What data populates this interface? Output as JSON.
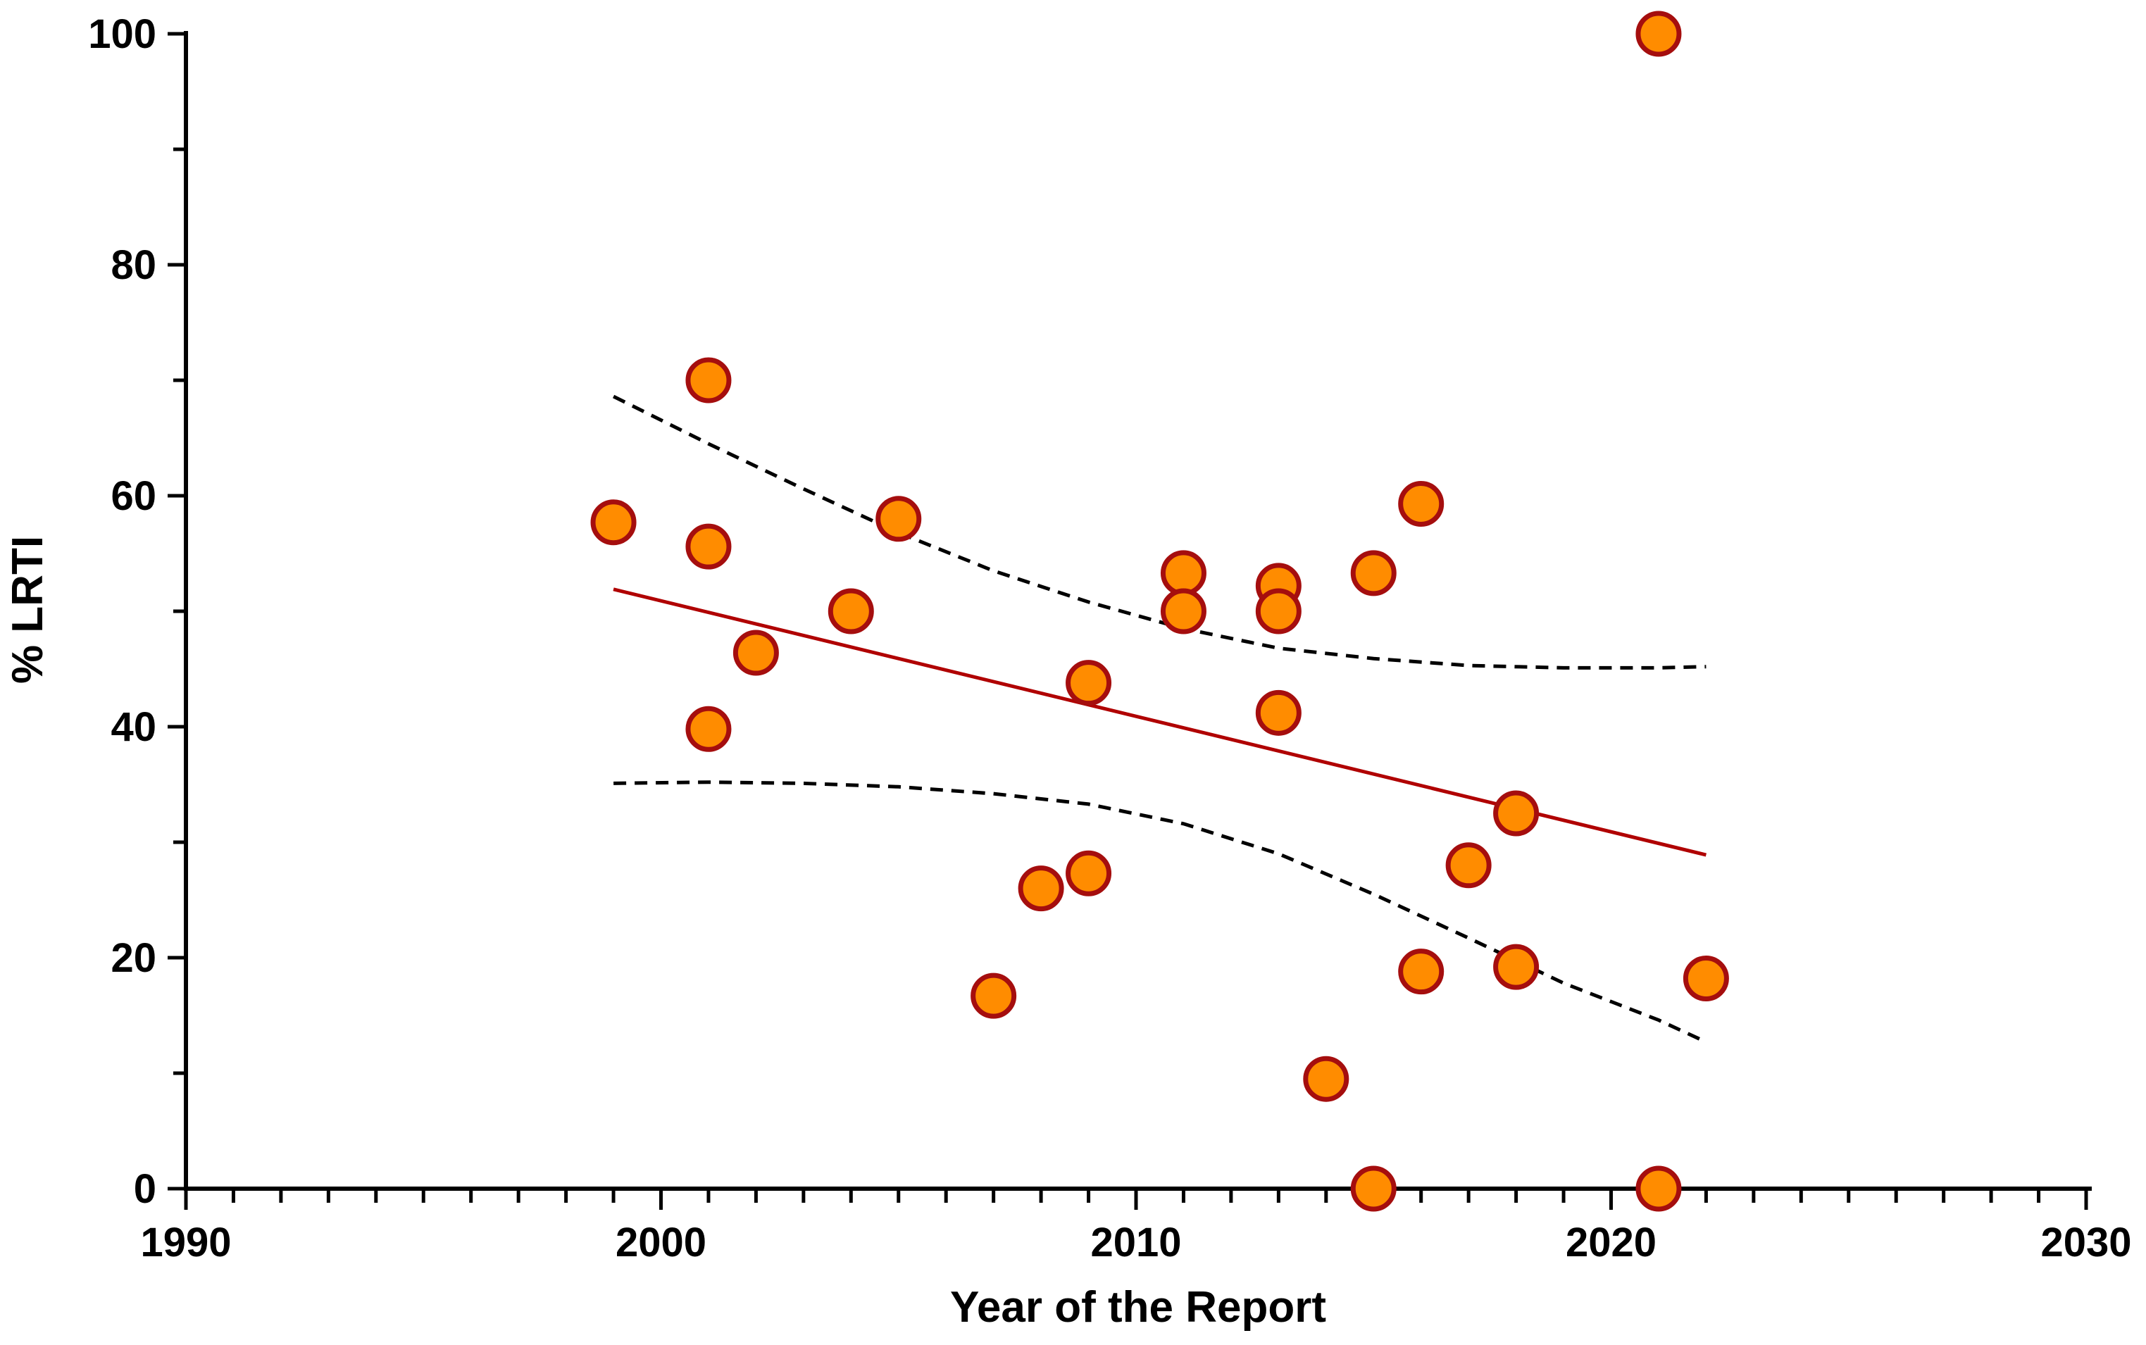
{
  "chart_data": {
    "type": "scatter",
    "title": "",
    "xlabel": "Year of the Report",
    "ylabel": "% LRTI",
    "xlim": [
      1990,
      2030
    ],
    "ylim": [
      0,
      100
    ],
    "x_ticks": [
      "1990",
      "2000",
      "2010",
      "2020",
      "2030"
    ],
    "y_ticks": [
      "0",
      "20",
      "40",
      "60",
      "80",
      "100"
    ],
    "x_minor_step": 1,
    "y_minor_step": 10,
    "grid": false,
    "legend": "none",
    "series": [
      {
        "name": "Reports",
        "marker": "circle",
        "points": [
          {
            "x": 1999,
            "y": 57.7
          },
          {
            "x": 2001,
            "y": 70.0
          },
          {
            "x": 2001,
            "y": 55.6
          },
          {
            "x": 2001,
            "y": 39.8
          },
          {
            "x": 2002,
            "y": 46.4
          },
          {
            "x": 2004,
            "y": 50.0
          },
          {
            "x": 2005,
            "y": 58.0
          },
          {
            "x": 2007,
            "y": 16.7
          },
          {
            "x": 2008,
            "y": 26.0
          },
          {
            "x": 2009,
            "y": 27.3
          },
          {
            "x": 2009,
            "y": 43.8
          },
          {
            "x": 2011,
            "y": 53.3
          },
          {
            "x": 2011,
            "y": 50.0
          },
          {
            "x": 2013,
            "y": 52.2
          },
          {
            "x": 2013,
            "y": 50.0
          },
          {
            "x": 2013,
            "y": 41.2
          },
          {
            "x": 2014,
            "y": 9.5
          },
          {
            "x": 2015,
            "y": 53.3
          },
          {
            "x": 2015,
            "y": 0.0
          },
          {
            "x": 2016,
            "y": 59.3
          },
          {
            "x": 2016,
            "y": 18.8
          },
          {
            "x": 2017,
            "y": 28.0
          },
          {
            "x": 2018,
            "y": 32.5
          },
          {
            "x": 2018,
            "y": 19.2
          },
          {
            "x": 2021,
            "y": 100.0
          },
          {
            "x": 2021,
            "y": 0.0
          },
          {
            "x": 2022,
            "y": 18.2
          }
        ]
      }
    ],
    "regression": {
      "x": [
        1999,
        2022
      ],
      "y": [
        51.9,
        28.9
      ]
    },
    "confidence_band": {
      "upper": {
        "x": [
          1999,
          2001,
          2003,
          2005,
          2007,
          2009,
          2011,
          2013,
          2015,
          2017,
          2019,
          2021,
          2022
        ],
        "y": [
          68.6,
          64.5,
          60.6,
          56.8,
          53.5,
          50.8,
          48.5,
          46.8,
          45.9,
          45.3,
          45.1,
          45.1,
          45.2
        ]
      },
      "lower": {
        "x": [
          1999,
          2001,
          2003,
          2005,
          2007,
          2009,
          2011,
          2013,
          2015,
          2017,
          2019,
          2021,
          2022
        ],
        "y": [
          35.1,
          35.2,
          35.1,
          34.8,
          34.2,
          33.3,
          31.6,
          29.0,
          25.5,
          21.7,
          17.8,
          14.6,
          12.7
        ]
      }
    },
    "colors": {
      "point_fill": "#FF8C00",
      "point_stroke": "#A50E0E",
      "regression_line": "#B00000",
      "confidence_line": "#000000",
      "axis": "#000000"
    }
  }
}
